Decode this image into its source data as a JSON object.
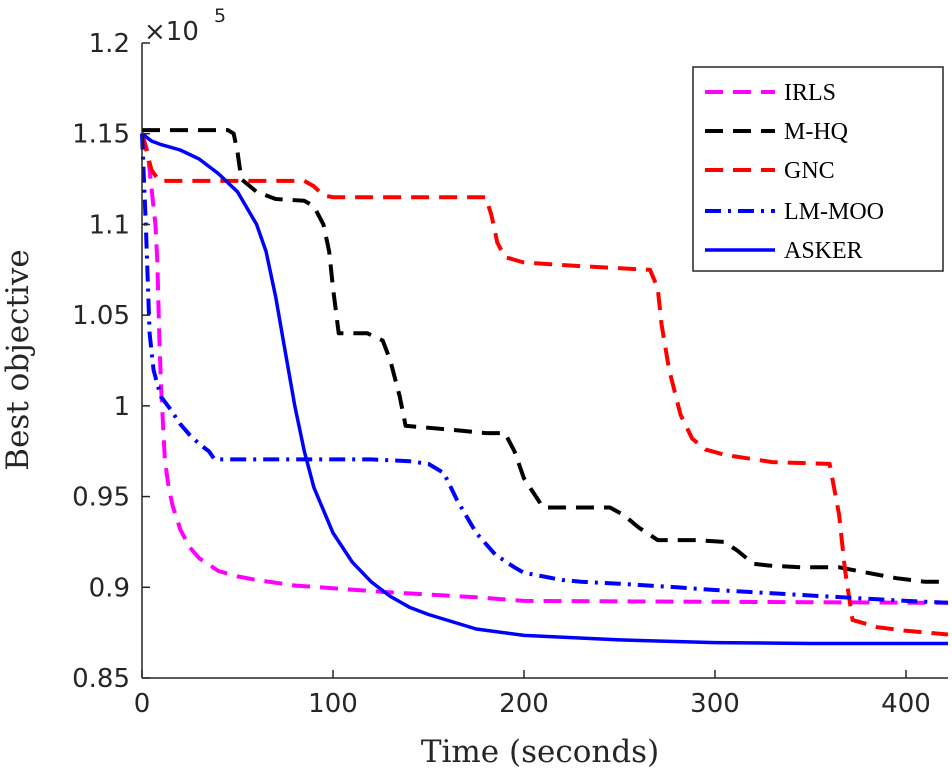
{
  "chart_data": {
    "type": "line",
    "title": "",
    "xlabel": "Time (seconds)",
    "ylabel": "Best objective",
    "xlim": [
      0,
      422
    ],
    "ylim": [
      0.85,
      1.2
    ],
    "xticks": [
      0,
      100,
      200,
      300,
      400
    ],
    "xtick_labels": [
      "0",
      "100",
      "200",
      "300",
      "400"
    ],
    "yticks": [
      0.85,
      0.9,
      0.95,
      1.0,
      1.05,
      1.1,
      1.15,
      1.2
    ],
    "ytick_labels": [
      "0.85",
      "0.9",
      "0.95",
      "1",
      "1.05",
      "1.1",
      "1.15",
      "1.2"
    ],
    "y_multiplier_base": "×10",
    "y_multiplier_exp": "5",
    "legend_position": "top-right",
    "series": [
      {
        "name": "IRLS",
        "color": "#ff00ff",
        "dash": "dashed",
        "x": [
          0,
          3,
          5,
          7,
          8,
          9,
          10,
          11,
          12,
          14,
          16,
          20,
          25,
          30,
          40,
          50,
          60,
          80,
          100,
          125,
          150,
          175,
          200,
          250,
          300,
          350,
          400,
          422
        ],
        "y": [
          1.15,
          1.14,
          1.12,
          1.1,
          1.08,
          1.04,
          1.01,
          0.99,
          0.97,
          0.955,
          0.945,
          0.932,
          0.922,
          0.916,
          0.909,
          0.906,
          0.904,
          0.901,
          0.8995,
          0.8975,
          0.896,
          0.8945,
          0.8925,
          0.8922,
          0.892,
          0.8918,
          0.8915,
          0.8915
        ]
      },
      {
        "name": "M-HQ",
        "color": "#000000",
        "dash": "dashed",
        "x": [
          0,
          45,
          48,
          50,
          52,
          60,
          70,
          85,
          90,
          95,
          98,
          100,
          103,
          118,
          126,
          130,
          135,
          138,
          160,
          180,
          190,
          195,
          200,
          205,
          210,
          220,
          245,
          252,
          260,
          270,
          290,
          305,
          312,
          320,
          328,
          345,
          365,
          375,
          395,
          410,
          422
        ],
        "y": [
          1.152,
          1.152,
          1.15,
          1.14,
          1.125,
          1.118,
          1.114,
          1.113,
          1.11,
          1.1,
          1.085,
          1.065,
          1.04,
          1.04,
          1.036,
          1.025,
          1.005,
          0.989,
          0.987,
          0.985,
          0.985,
          0.975,
          0.96,
          0.952,
          0.944,
          0.944,
          0.944,
          0.94,
          0.933,
          0.926,
          0.926,
          0.925,
          0.92,
          0.913,
          0.912,
          0.911,
          0.911,
          0.909,
          0.905,
          0.903,
          0.903
        ]
      },
      {
        "name": "GNC",
        "color": "#ff0000",
        "dash": "dashed",
        "x": [
          0,
          5,
          9,
          45,
          85,
          90,
          95,
          100,
          180,
          183,
          186,
          190,
          200,
          230,
          266,
          270,
          272,
          276,
          282,
          288,
          295,
          305,
          330,
          360,
          365,
          368,
          372,
          385,
          400,
          422
        ],
        "y": [
          1.15,
          1.13,
          1.124,
          1.124,
          1.124,
          1.121,
          1.116,
          1.115,
          1.115,
          1.105,
          1.09,
          1.082,
          1.079,
          1.077,
          1.075,
          1.065,
          1.045,
          1.02,
          0.995,
          0.982,
          0.976,
          0.973,
          0.969,
          0.968,
          0.94,
          0.91,
          0.882,
          0.878,
          0.876,
          0.874
        ]
      },
      {
        "name": "LM-MOO",
        "color": "#0000ff",
        "dash": "dashdot",
        "x": [
          0,
          2,
          4,
          6,
          8,
          10,
          15,
          20,
          25,
          30,
          35,
          38,
          50,
          80,
          100,
          120,
          140,
          150,
          158,
          165,
          175,
          185,
          195,
          200,
          210,
          220,
          230,
          250,
          280,
          300,
          350,
          400,
          422
        ],
        "y": [
          1.15,
          1.1,
          1.04,
          1.02,
          1.012,
          1.005,
          0.998,
          0.99,
          0.984,
          0.979,
          0.975,
          0.9705,
          0.9705,
          0.9705,
          0.9705,
          0.9705,
          0.9695,
          0.968,
          0.963,
          0.948,
          0.93,
          0.918,
          0.911,
          0.908,
          0.906,
          0.904,
          0.903,
          0.902,
          0.9,
          0.8985,
          0.8955,
          0.8925,
          0.8915
        ]
      },
      {
        "name": "ASKER",
        "color": "#0000ff",
        "dash": "solid",
        "x": [
          0,
          5,
          10,
          20,
          30,
          40,
          50,
          60,
          65,
          70,
          75,
          80,
          85,
          90,
          100,
          110,
          120,
          130,
          140,
          150,
          175,
          200,
          250,
          300,
          350,
          400,
          422
        ],
        "y": [
          1.15,
          1.146,
          1.144,
          1.141,
          1.136,
          1.128,
          1.118,
          1.1,
          1.085,
          1.06,
          1.03,
          1.0,
          0.975,
          0.955,
          0.93,
          0.914,
          0.903,
          0.895,
          0.889,
          0.885,
          0.877,
          0.8735,
          0.871,
          0.8695,
          0.869,
          0.869,
          0.869
        ]
      }
    ]
  }
}
